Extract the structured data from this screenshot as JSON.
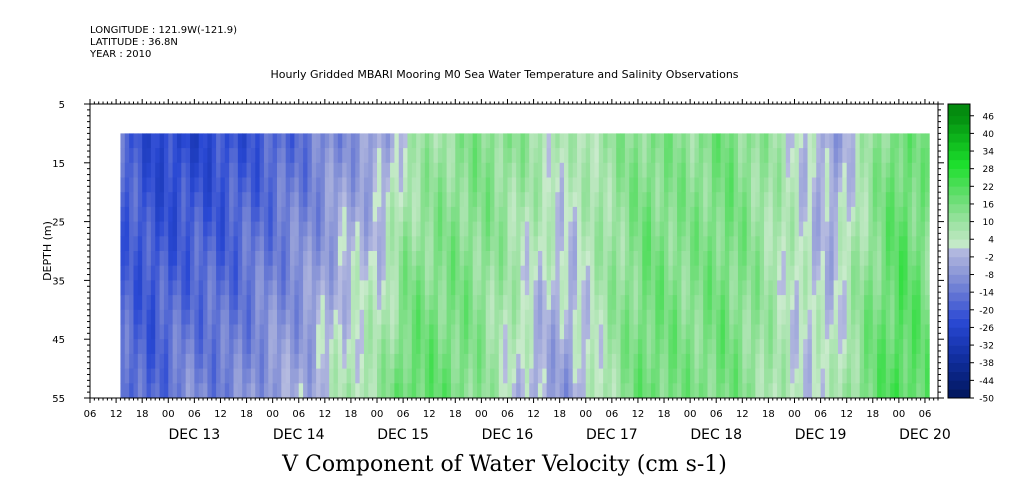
{
  "header": {
    "longitude": "LONGITUDE : 121.9W(-121.9)",
    "latitude": "LATITUDE : 36.8N",
    "year": "YEAR : 2010"
  },
  "chart_data": {
    "type": "heatmap",
    "title": "Hourly Gridded MBARI Mooring M0 Sea Water Temperature and Salinity Observations",
    "caption": "V Component of Water Velocity (cm s-1)",
    "ylabel": "DEPTH (m)",
    "ylim": [
      5,
      55
    ],
    "y_inverted": true,
    "y_ticks": [
      5,
      15,
      25,
      35,
      45,
      55
    ],
    "data_depth_range": [
      10,
      55
    ],
    "x_time_range": [
      "2010-12-12 06:00",
      "2010-12-20 09:00"
    ],
    "data_time_range": [
      "2010-12-12 13:00",
      "2010-12-20 07:00"
    ],
    "x_hour_ticks": [
      "06",
      "12",
      "18",
      "00",
      "06",
      "12",
      "18",
      "00",
      "06",
      "12",
      "18",
      "00",
      "06",
      "12",
      "18",
      "00",
      "06",
      "12",
      "18",
      "00",
      "06",
      "12",
      "18",
      "00",
      "06",
      "12",
      "18",
      "00",
      "06",
      "12",
      "18",
      "00",
      "06"
    ],
    "x_day_labels": [
      "DEC 13",
      "DEC 14",
      "DEC 15",
      "DEC 16",
      "DEC 17",
      "DEC 18",
      "DEC 19",
      "DEC 20"
    ],
    "colorbar": {
      "labels": [
        "46",
        "40",
        "34",
        "28",
        "22",
        "16",
        "10",
        "4",
        "-2",
        "-8",
        "-14",
        "-20",
        "-26",
        "-32",
        "-38",
        "-44",
        "-50"
      ],
      "min": -50,
      "max": 50,
      "step": 3
    },
    "profile": {
      "hours_from_start": [
        7,
        14,
        22,
        31,
        40,
        50,
        58,
        67,
        73,
        79,
        85,
        91,
        97,
        103,
        110,
        119,
        128,
        138,
        146,
        154,
        163,
        171,
        178,
        186,
        193
      ],
      "upper_velocity": [
        -18,
        -24,
        -26,
        -23,
        -20,
        -14,
        -9,
        -6,
        5,
        9,
        12,
        14,
        12,
        9,
        5,
        10,
        14,
        12,
        16,
        11,
        3,
        -6,
        6,
        18,
        12
      ],
      "lower_velocity": [
        -16,
        -18,
        -10,
        -12,
        -6,
        -3,
        6,
        10,
        20,
        18,
        16,
        10,
        3,
        -4,
        -6,
        8,
        18,
        14,
        16,
        10,
        2,
        4,
        16,
        22,
        18
      ]
    }
  }
}
